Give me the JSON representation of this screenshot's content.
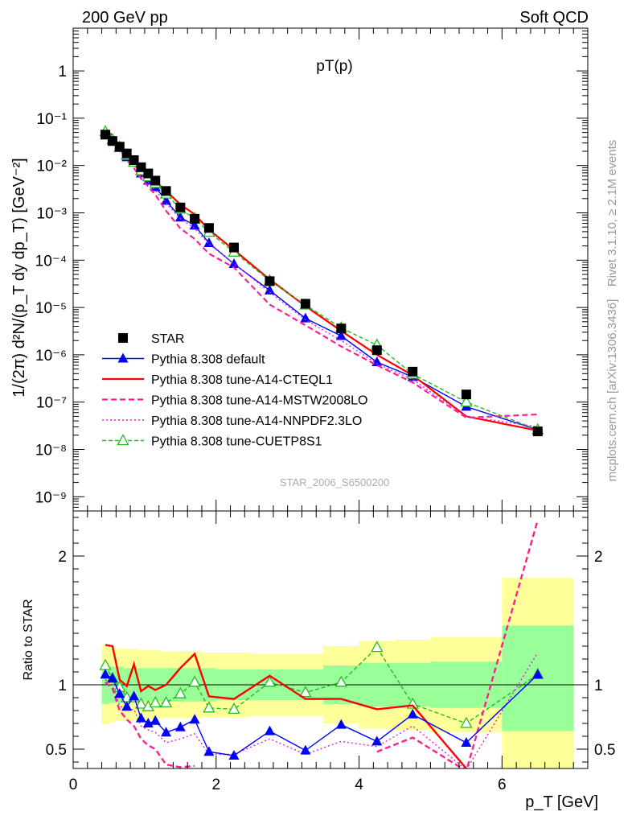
{
  "header": {
    "left": "200 GeV pp",
    "right": "Soft QCD"
  },
  "side_labels": {
    "rivet": "Rivet 3.1.10, ≥ 2.1M events",
    "mcplots": "mcplots.cern.ch [arXiv:1306.3436]"
  },
  "chart_data": [
    {
      "type": "scatter",
      "title": "pT(p)",
      "watermark": "STAR_2006_S6500200",
      "ylabel": "1/(2π) d²N/(p_T dy dp_T) [GeV⁻²]",
      "xlim": [
        0,
        7.2
      ],
      "ylim": [
        5e-10,
        8
      ],
      "yscale": "log",
      "ytick_labels": [
        "10⁻⁹",
        "10⁻⁸",
        "10⁻⁷",
        "10⁻⁶",
        "10⁻⁵",
        "10⁻⁴",
        "10⁻³",
        "10⁻²",
        "10⁻¹",
        "1"
      ],
      "x": [
        0.45,
        0.55,
        0.65,
        0.75,
        0.85,
        0.95,
        1.05,
        1.15,
        1.3,
        1.5,
        1.7,
        1.9,
        2.25,
        2.75,
        3.25,
        3.75,
        4.25,
        4.75,
        5.5,
        6.5
      ],
      "legend_position": "bottom-left",
      "series": [
        {
          "name": "STAR",
          "color": "#000000",
          "marker": "square",
          "values": [
            0.045,
            0.033,
            0.025,
            0.018,
            0.013,
            0.0092,
            0.0068,
            0.0048,
            0.0029,
            0.0013,
            0.00075,
            0.00048,
            0.000185,
            3.6e-05,
            1.2e-05,
            3.6e-06,
            1.25e-06,
            4.4e-07,
            1.45e-07,
            2.4e-08
          ]
        },
        {
          "name": "Pythia 8.308 default",
          "color": "#0000ff",
          "marker": "filled-triangle",
          "dash": "",
          "values": [
            0.049,
            0.034,
            0.0235,
            0.015,
            0.0118,
            0.0068,
            0.0048,
            0.0035,
            0.0018,
            0.0008,
            0.00054,
            0.00023,
            8.3e-05,
            2.3e-05,
            5.9e-06,
            2.5e-06,
            7e-07,
            3.4e-07,
            8e-08,
            2.6e-08
          ]
        },
        {
          "name": "Pythia 8.308 tune-A14-CTEQL1",
          "color": "#ff0000",
          "marker": "none",
          "dash": "",
          "values": [
            0.059,
            0.043,
            0.026,
            0.018,
            0.015,
            0.0087,
            0.0067,
            0.0046,
            0.0029,
            0.0015,
            0.00093,
            0.00044,
            0.000165,
            3.9e-05,
            1.07e-05,
            3.2e-06,
            1e-06,
            3.7e-07,
            5e-08,
            2.5e-08
          ]
        },
        {
          "name": "Pythia 8.308 tune-A14-MSTW2008LO",
          "color": "#ff1f8f",
          "marker": "none",
          "dash": "7,4",
          "values": [
            0.046,
            0.032,
            0.02,
            0.013,
            0.0088,
            0.0053,
            0.0036,
            0.0024,
            0.0011,
            0.00047,
            0.00028,
            0.000137,
            7e-05,
            1.15e-05,
            4.2e-06,
            1.5e-06,
            6e-07,
            2.6e-07,
            4.7e-08,
            5.5e-08
          ]
        },
        {
          "name": "Pythia 8.308 tune-A14-NNPDF2.3LO",
          "color": "#e020e0",
          "marker": "none",
          "dash": "2,3",
          "values": [
            0.047,
            0.033,
            0.021,
            0.0145,
            0.0105,
            0.0063,
            0.0044,
            0.003,
            0.0016,
            0.00075,
            0.00047,
            0.00022,
            8.5e-05,
            2.1e-05,
            5.5e-06,
            2e-06,
            6.5e-07,
            3e-07,
            5e-08,
            3e-08
          ]
        },
        {
          "name": "Pythia 8.308 tune-CUETP8S1",
          "color": "#22bb22",
          "marker": "open-triangle",
          "dash": "5,3",
          "values": [
            0.052,
            0.035,
            0.0245,
            0.0165,
            0.0118,
            0.0078,
            0.0058,
            0.0042,
            0.0025,
            0.0012,
            0.00076,
            0.00039,
            0.000148,
            3.7e-05,
            1.13e-05,
            3.7e-06,
            1.6e-06,
            3.9e-07,
            1e-07,
            2.6e-08
          ]
        }
      ]
    },
    {
      "type": "line",
      "ylabel": "Ratio to STAR",
      "xlabel": "p_T [GeV]",
      "xlim": [
        0,
        7.2
      ],
      "ylim": [
        0.35,
        2.35
      ],
      "x_ticks": [
        0,
        2,
        4,
        6
      ],
      "y_ticks": [
        0.5,
        1,
        2
      ],
      "x_tick_labels": [
        "0",
        "2",
        "4",
        "6"
      ],
      "y_tick_labels": [
        "0.5",
        "1",
        "2"
      ],
      "x": [
        0.45,
        0.55,
        0.65,
        0.75,
        0.85,
        0.95,
        1.05,
        1.15,
        1.3,
        1.5,
        1.7,
        1.9,
        2.25,
        2.75,
        3.25,
        3.75,
        4.25,
        4.75,
        5.5,
        6.5
      ],
      "bands": {
        "bin_edges": [
          0.4,
          0.5,
          0.6,
          0.7,
          0.8,
          0.9,
          1.0,
          1.1,
          1.2,
          1.4,
          1.6,
          1.8,
          2.0,
          2.5,
          3.0,
          3.5,
          4.0,
          4.5,
          5.0,
          6.0,
          7.0
        ],
        "green_lo": [
          0.85,
          0.86,
          0.86,
          0.87,
          0.87,
          0.87,
          0.87,
          0.87,
          0.87,
          0.87,
          0.87,
          0.87,
          0.88,
          0.88,
          0.88,
          0.85,
          0.83,
          0.83,
          0.82,
          0.64
        ],
        "green_hi": [
          1.15,
          1.14,
          1.14,
          1.13,
          1.13,
          1.13,
          1.13,
          1.13,
          1.13,
          1.13,
          1.13,
          1.13,
          1.12,
          1.12,
          1.12,
          1.15,
          1.17,
          1.17,
          1.18,
          1.46
        ],
        "yellow_lo": [
          0.69,
          0.71,
          0.72,
          0.72,
          0.72,
          0.73,
          0.73,
          0.73,
          0.74,
          0.74,
          0.74,
          0.75,
          0.75,
          0.76,
          0.76,
          0.7,
          0.66,
          0.65,
          0.63,
          0.35
        ],
        "yellow_hi": [
          1.31,
          1.29,
          1.28,
          1.28,
          1.28,
          1.27,
          1.27,
          1.27,
          1.26,
          1.26,
          1.26,
          1.25,
          1.25,
          1.24,
          1.24,
          1.3,
          1.34,
          1.35,
          1.37,
          1.83
        ]
      },
      "series": [
        {
          "name": "Pythia 8.308 default",
          "color": "#0000ff",
          "marker": "filled-triangle",
          "dash": "",
          "values": [
            1.08,
            1.05,
            0.93,
            0.83,
            0.91,
            0.74,
            0.7,
            0.72,
            0.63,
            0.67,
            0.73,
            0.48,
            0.45,
            0.64,
            0.49,
            0.69,
            0.56,
            0.77,
            0.55,
            1.08
          ]
        },
        {
          "name": "Pythia 8.308 tune-A14-CTEQL1",
          "color": "#ff0000",
          "marker": "none",
          "dash": "",
          "values": [
            1.31,
            1.3,
            1.04,
            0.99,
            1.16,
            0.95,
            0.99,
            0.96,
            1.0,
            1.13,
            1.24,
            0.91,
            0.89,
            1.07,
            0.89,
            0.89,
            0.81,
            0.84,
            0.35,
            null
          ]
        },
        {
          "name": "Pythia 8.308 tune-A14-MSTW2008LO",
          "color": "#ff1f8f",
          "marker": "none",
          "dash": "7,4",
          "values": [
            1.02,
            0.97,
            0.8,
            0.73,
            0.68,
            0.58,
            0.53,
            0.5,
            0.38,
            0.36,
            0.37,
            null,
            null,
            null,
            null,
            null,
            0.48,
            0.59,
            0.33,
            2.28
          ]
        },
        {
          "name": "Pythia 8.308 tune-A14-NNPDF2.3LO",
          "color": "#e020e0",
          "marker": "none",
          "dash": "2,3",
          "values": [
            1.04,
            1.0,
            0.84,
            0.8,
            0.81,
            0.68,
            0.65,
            0.63,
            0.55,
            0.58,
            0.62,
            0.46,
            0.46,
            0.58,
            0.46,
            0.56,
            0.52,
            0.68,
            0.34,
            1.25
          ]
        },
        {
          "name": "Pythia 8.308 tune-CUETP8S1",
          "color": "#22bb22",
          "marker": "open-triangle",
          "dash": "5,3",
          "values": [
            1.15,
            1.05,
            0.98,
            0.9,
            0.9,
            0.85,
            0.83,
            0.86,
            0.86,
            0.93,
            1.02,
            0.82,
            0.81,
            1.02,
            0.94,
            1.02,
            1.29,
            0.85,
            0.7,
            1.08
          ]
        }
      ]
    }
  ]
}
